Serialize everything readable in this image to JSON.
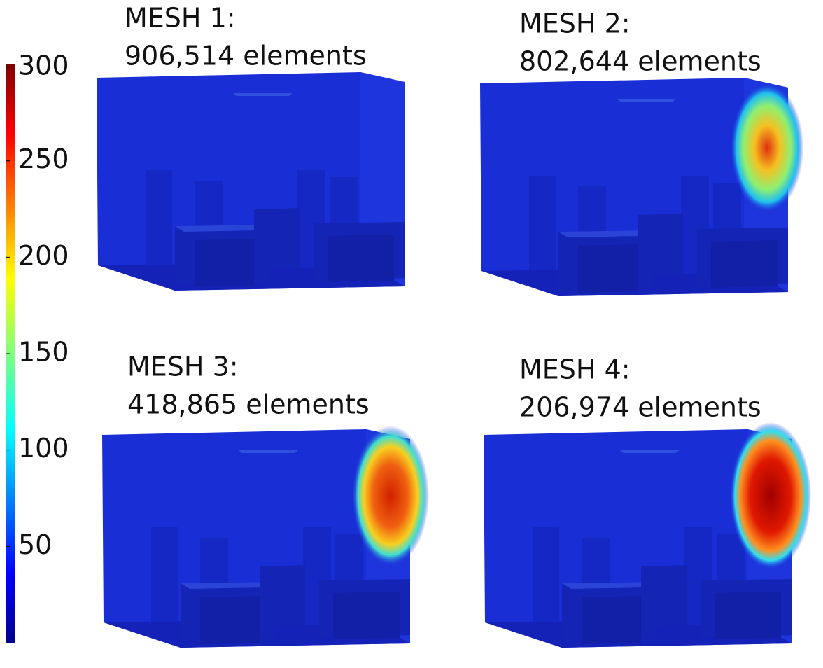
{
  "colorbar": {
    "range": [
      0,
      300
    ],
    "ticks": [
      50,
      100,
      150,
      200,
      250,
      300
    ]
  },
  "panels": [
    {
      "title": "MESH 1:",
      "subtitle": "906,514 elements"
    },
    {
      "title": "MESH 2:",
      "subtitle": "802,644 elements"
    },
    {
      "title": "MESH 3:",
      "subtitle": "418,865 elements"
    },
    {
      "title": "MESH 4:",
      "subtitle": "206,974 elements"
    }
  ]
}
